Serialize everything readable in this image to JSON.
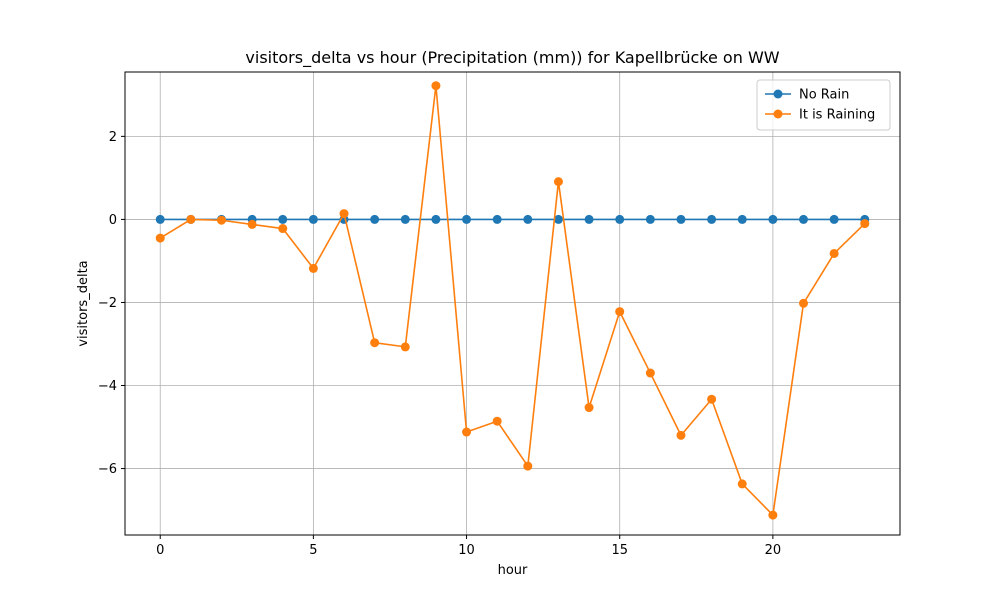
{
  "chart_data": {
    "type": "line",
    "title": "visitors_delta vs hour (Precipitation (mm)) for Kapellbrücke on WW",
    "xlabel": "hour",
    "ylabel": "visitors_delta",
    "xlim": [
      -1.15,
      24.15
    ],
    "ylim": [
      -7.6,
      3.55
    ],
    "xticks": [
      0,
      5,
      10,
      15,
      20
    ],
    "yticks": [
      -6,
      -4,
      -2,
      0,
      2
    ],
    "ytick_labels": [
      "−6",
      "−4",
      "−2",
      "0",
      "2"
    ],
    "grid": true,
    "legend_position": "top-right",
    "x": [
      0,
      1,
      2,
      3,
      4,
      5,
      6,
      7,
      8,
      9,
      10,
      11,
      12,
      13,
      14,
      15,
      16,
      17,
      18,
      19,
      20,
      21,
      22,
      23
    ],
    "series": [
      {
        "name": "No Rain",
        "color": "#1f77b4",
        "values": [
          0,
          0,
          0,
          0,
          0,
          0,
          0,
          0,
          0,
          0,
          0,
          0,
          0,
          0,
          0,
          0,
          0,
          0,
          0,
          0,
          0,
          0,
          0,
          0
        ]
      },
      {
        "name": "It is Raining",
        "color": "#ff7f0e",
        "values": [
          -0.45,
          0.0,
          -0.02,
          -0.12,
          -0.22,
          -1.18,
          0.14,
          -2.97,
          -3.07,
          3.22,
          -5.12,
          -4.86,
          -5.94,
          0.91,
          -4.53,
          -2.22,
          -3.7,
          -5.2,
          -4.33,
          -6.37,
          -7.12,
          -2.02,
          -0.82,
          -0.1
        ]
      }
    ]
  }
}
